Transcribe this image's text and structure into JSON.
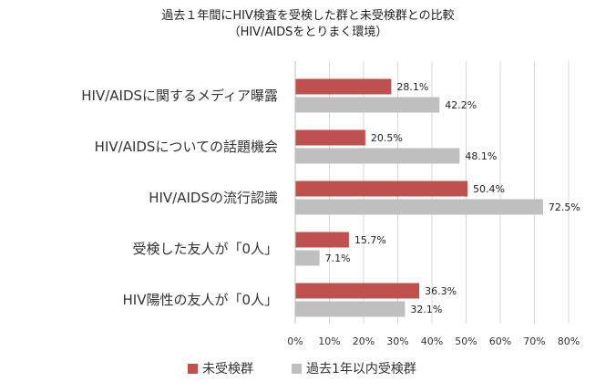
{
  "chart_data": {
    "type": "bar",
    "orientation": "horizontal",
    "title": "過去１年間にHIV検査を受検した群と未受検群との比較",
    "subtitle": "（HIV/AIDSをとりまく環境）",
    "categories": [
      "HIV/AIDSに関するメディア曝露",
      "HIV/AIDSについての話題機会",
      "HIV/AIDSの流行認識",
      "受検した友人が「0人」",
      "HIV陽性の友人が「0人」"
    ],
    "series": [
      {
        "name": "未受検群",
        "color": "#c0504d",
        "values": [
          28.1,
          20.5,
          50.4,
          15.7,
          36.3
        ]
      },
      {
        "name": "過去1年以内受検群",
        "color": "#bfbfbf",
        "values": [
          42.2,
          48.1,
          72.5,
          7.1,
          32.1
        ]
      }
    ],
    "value_labels": [
      [
        "28.1%",
        "20.5%",
        "50.4%",
        "15.7%",
        "36.3%"
      ],
      [
        "42.2%",
        "48.1%",
        "72.5%",
        "7.1%",
        "32.1%"
      ]
    ],
    "xlim": [
      0,
      80
    ],
    "xticks": [
      0,
      10,
      20,
      30,
      40,
      50,
      60,
      70,
      80
    ],
    "xtick_labels": [
      "0%",
      "10%",
      "20%",
      "30%",
      "40%",
      "50%",
      "60%",
      "70%",
      "80%"
    ],
    "grid": true,
    "legend_position": "bottom"
  }
}
